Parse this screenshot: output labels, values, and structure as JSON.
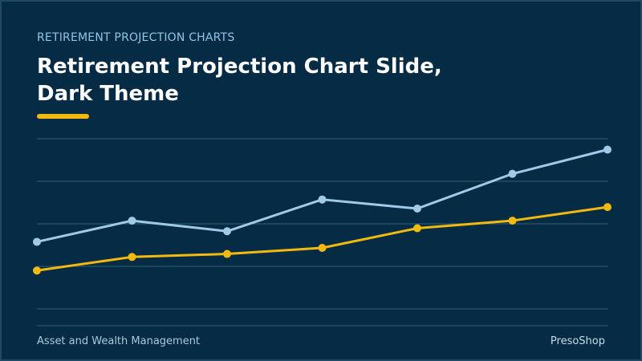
{
  "header": {
    "eyebrow": "RETIREMENT PROJECTION CHARTS",
    "title": "Retirement Projection Chart Slide,\nDark Theme"
  },
  "footer": {
    "left": "Asset and Wealth Management",
    "right": "PresoShop"
  },
  "colors": {
    "background": "#062c45",
    "accent": "#f2b90f",
    "line_light": "#9fcbe8",
    "line_gold": "#f2b90f",
    "gridline": "#2a5570"
  },
  "chart_data": {
    "type": "line",
    "x": [
      1,
      2,
      3,
      4,
      5,
      6,
      7
    ],
    "series": [
      {
        "values": [
          26,
          40,
          33,
          54,
          48,
          71,
          87
        ]
      },
      {
        "values": [
          7,
          16,
          18,
          22,
          35,
          40,
          49
        ]
      }
    ],
    "ylim": [
      -30,
      100
    ],
    "grid": true
  }
}
